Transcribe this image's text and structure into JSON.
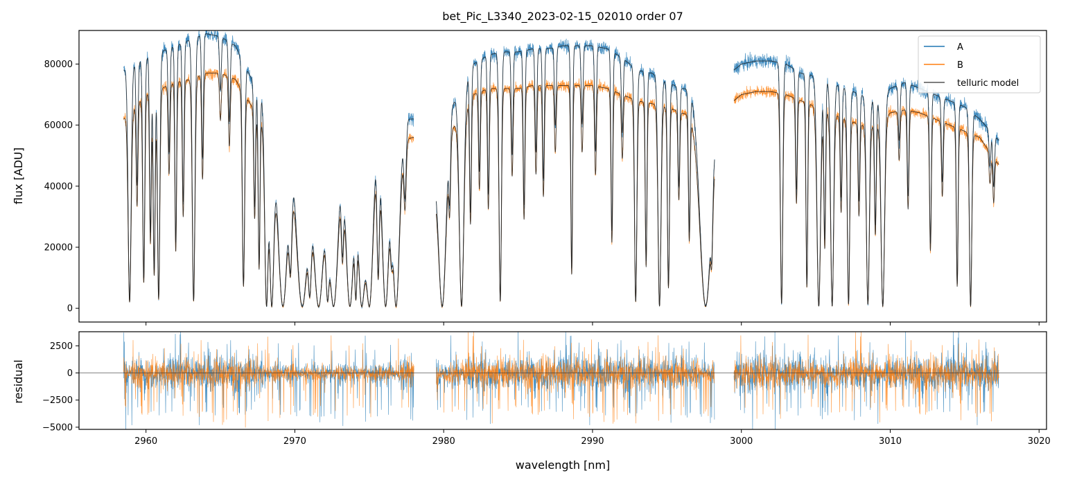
{
  "chart_data": [
    {
      "type": "line",
      "name": "flux-panel",
      "title": "bet_Pic_L3340_2023-02-15_02010  order 07",
      "xlabel": "",
      "ylabel": "flux [ADU]",
      "xlim": [
        2955.5,
        3020.5
      ],
      "ylim": [
        -4500,
        91000
      ],
      "yticks": [
        0,
        20000,
        40000,
        60000,
        80000
      ],
      "ytick_labels": [
        "0",
        "20000",
        "40000",
        "60000",
        "80000"
      ],
      "xticks": [
        2960,
        2970,
        2980,
        2990,
        3000,
        3010,
        3020
      ],
      "xtick_labels": [
        "",
        "",
        "",
        "",
        "",
        "",
        ""
      ],
      "legend": {
        "position": "top-right",
        "entries": [
          {
            "label": "A",
            "color": "#1f77b4"
          },
          {
            "label": "B",
            "color": "#ff7f0e"
          },
          {
            "label": "telluric model",
            "color": "#555555"
          }
        ]
      },
      "segments": [
        {
          "x_start": 2958.5,
          "x_end": 2978.0
        },
        {
          "x_start": 2979.5,
          "x_end": 2998.2
        },
        {
          "x_start": 2999.5,
          "x_end": 3017.3
        }
      ],
      "series": [
        {
          "name": "A",
          "color": "#1f77b4",
          "continuum": [
            [
              2958.5,
              78000
            ],
            [
              2960,
              82000
            ],
            [
              2961,
              84000
            ],
            [
              2962,
              86000
            ],
            [
              2963,
              88000
            ],
            [
              2964,
              90000
            ],
            [
              2965,
              89000
            ],
            [
              2966,
              86000
            ],
            [
              2967,
              76000
            ],
            [
              2968,
              68000
            ],
            [
              2969,
              62000
            ],
            [
              2970,
              62000
            ],
            [
              2971,
              54000
            ],
            [
              2972,
              48000
            ],
            [
              2973,
              64000
            ],
            [
              2974,
              66000
            ],
            [
              2975,
              62000
            ],
            [
              2976,
              62000
            ],
            [
              2977,
              62000
            ],
            [
              2978,
              62000
            ],
            [
              2979.5,
              50000
            ],
            [
              2980,
              64000
            ],
            [
              2981,
              70000
            ],
            [
              2982,
              80000
            ],
            [
              2983,
              83000
            ],
            [
              2984,
              84000
            ],
            [
              2985,
              84000
            ],
            [
              2986,
              85000
            ],
            [
              2987,
              85000
            ],
            [
              2988,
              86000
            ],
            [
              2989,
              86000
            ],
            [
              2990,
              86000
            ],
            [
              2991,
              85000
            ],
            [
              2992,
              82000
            ],
            [
              2993,
              78000
            ],
            [
              2994,
              77000
            ],
            [
              2995,
              74000
            ],
            [
              2996,
              72000
            ],
            [
              2997,
              72000
            ],
            [
              2998.2,
              70000
            ],
            [
              2999.5,
              78000
            ],
            [
              3000,
              80000
            ],
            [
              3001,
              81000
            ],
            [
              3002,
              81000
            ],
            [
              3003,
              80000
            ],
            [
              3004,
              77000
            ],
            [
              3005,
              76000
            ],
            [
              3006,
              74000
            ],
            [
              3007,
              72000
            ],
            [
              3008,
              70000
            ],
            [
              3009,
              68000
            ],
            [
              3010,
              72000
            ],
            [
              3011,
              74000
            ],
            [
              3012,
              72000
            ],
            [
              3013,
              70000
            ],
            [
              3014,
              68000
            ],
            [
              3015,
              66000
            ],
            [
              3016,
              62000
            ],
            [
              3017.3,
              55000
            ]
          ],
          "noise": 2200
        },
        {
          "name": "B",
          "color": "#ff7f0e",
          "continuum": [
            [
              2958.5,
              62000
            ],
            [
              2960,
              70000
            ],
            [
              2961,
              72000
            ],
            [
              2962,
              74000
            ],
            [
              2963,
              75000
            ],
            [
              2964,
              77000
            ],
            [
              2965,
              77000
            ],
            [
              2966,
              75000
            ],
            [
              2967,
              67000
            ],
            [
              2968,
              60000
            ],
            [
              2969,
              56000
            ],
            [
              2970,
              54000
            ],
            [
              2971,
              48000
            ],
            [
              2972,
              44000
            ],
            [
              2973,
              56000
            ],
            [
              2974,
              58000
            ],
            [
              2975,
              55000
            ],
            [
              2976,
              55000
            ],
            [
              2977,
              55000
            ],
            [
              2978,
              56000
            ],
            [
              2979.5,
              44000
            ],
            [
              2980,
              56000
            ],
            [
              2981,
              62000
            ],
            [
              2982,
              70000
            ],
            [
              2983,
              72000
            ],
            [
              2984,
              72000
            ],
            [
              2985,
              72000
            ],
            [
              2986,
              73000
            ],
            [
              2987,
              73000
            ],
            [
              2988,
              73000
            ],
            [
              2989,
              73000
            ],
            [
              2990,
              73000
            ],
            [
              2991,
              72000
            ],
            [
              2992,
              70000
            ],
            [
              2993,
              68000
            ],
            [
              2994,
              67000
            ],
            [
              2995,
              66000
            ],
            [
              2996,
              64000
            ],
            [
              2997,
              63000
            ],
            [
              2998.2,
              61000
            ],
            [
              2999.5,
              68000
            ],
            [
              3000,
              70000
            ],
            [
              3001,
              71000
            ],
            [
              3002,
              71000
            ],
            [
              3003,
              70000
            ],
            [
              3004,
              68000
            ],
            [
              3005,
              66000
            ],
            [
              3006,
              64000
            ],
            [
              3007,
              62000
            ],
            [
              3008,
              60000
            ],
            [
              3009,
              60000
            ],
            [
              3010,
              64000
            ],
            [
              3011,
              65000
            ],
            [
              3012,
              64000
            ],
            [
              3013,
              62000
            ],
            [
              3014,
              60000
            ],
            [
              3015,
              58000
            ],
            [
              3016,
              56000
            ],
            [
              3017.3,
              47000
            ]
          ],
          "noise": 1800
        },
        {
          "name": "telluric model",
          "color": "#333333",
          "noise": 0
        }
      ],
      "absorption_lines": [
        [
          2958.9,
          0.97,
          0.1
        ],
        [
          2959.4,
          0.5,
          0.06
        ],
        [
          2959.85,
          0.88,
          0.07
        ],
        [
          2960.3,
          0.7,
          0.06
        ],
        [
          2960.55,
          0.85,
          0.07
        ],
        [
          2960.85,
          0.96,
          0.08
        ],
        [
          2961.55,
          0.4,
          0.06
        ],
        [
          2962.0,
          0.75,
          0.06
        ],
        [
          2962.5,
          0.6,
          0.06
        ],
        [
          2963.2,
          0.97,
          0.09
        ],
        [
          2963.8,
          0.45,
          0.06
        ],
        [
          2965.0,
          0.2,
          0.06
        ],
        [
          2965.6,
          0.3,
          0.06
        ],
        [
          2966.55,
          0.9,
          0.08
        ],
        [
          2967.3,
          0.55,
          0.06
        ],
        [
          2967.6,
          0.8,
          0.06
        ],
        [
          2968.1,
          0.99,
          0.12
        ],
        [
          2968.45,
          0.99,
          0.15
        ],
        [
          2969.2,
          0.99,
          0.25
        ],
        [
          2969.7,
          0.7,
          0.1
        ],
        [
          2970.5,
          0.99,
          0.3
        ],
        [
          2971.0,
          0.85,
          0.1
        ],
        [
          2971.6,
          0.99,
          0.25
        ],
        [
          2972.2,
          0.9,
          0.1
        ],
        [
          2972.6,
          0.99,
          0.25
        ],
        [
          2973.2,
          0.6,
          0.08
        ],
        [
          2973.7,
          0.99,
          0.22
        ],
        [
          2974.1,
          0.9,
          0.08
        ],
        [
          2974.5,
          0.99,
          0.2
        ],
        [
          2975.0,
          0.99,
          0.2
        ],
        [
          2975.6,
          0.8,
          0.08
        ],
        [
          2976.1,
          0.99,
          0.18
        ],
        [
          2976.5,
          0.5,
          0.08
        ],
        [
          2976.8,
          0.99,
          0.18
        ],
        [
          2977.4,
          0.4,
          0.08
        ],
        [
          2979.9,
          0.99,
          0.2
        ],
        [
          2980.4,
          0.4,
          0.06
        ],
        [
          2981.2,
          0.99,
          0.15
        ],
        [
          2981.8,
          0.6,
          0.06
        ],
        [
          2982.4,
          0.45,
          0.06
        ],
        [
          2983.0,
          0.55,
          0.06
        ],
        [
          2983.8,
          0.97,
          0.08
        ],
        [
          2984.6,
          0.4,
          0.06
        ],
        [
          2985.4,
          0.6,
          0.06
        ],
        [
          2986.2,
          0.4,
          0.06
        ],
        [
          2986.7,
          0.5,
          0.06
        ],
        [
          2987.5,
          0.3,
          0.06
        ],
        [
          2988.6,
          0.85,
          0.06
        ],
        [
          2989.3,
          0.3,
          0.06
        ],
        [
          2990.2,
          0.4,
          0.06
        ],
        [
          2991.3,
          0.7,
          0.06
        ],
        [
          2992.0,
          0.3,
          0.06
        ],
        [
          2992.9,
          0.97,
          0.08
        ],
        [
          2993.6,
          0.8,
          0.06
        ],
        [
          2994.5,
          0.99,
          0.1
        ],
        [
          2995.1,
          0.9,
          0.07
        ],
        [
          2995.8,
          0.45,
          0.06
        ],
        [
          2996.5,
          0.65,
          0.06
        ],
        [
          2997.6,
          0.99,
          0.3
        ],
        [
          2998.0,
          0.5,
          0.06
        ],
        [
          3002.7,
          0.98,
          0.08
        ],
        [
          3003.7,
          0.5,
          0.06
        ],
        [
          3004.4,
          0.9,
          0.06
        ],
        [
          3005.2,
          0.99,
          0.12
        ],
        [
          3005.6,
          0.7,
          0.06
        ],
        [
          3006.1,
          0.99,
          0.1
        ],
        [
          3006.7,
          0.5,
          0.06
        ],
        [
          3007.2,
          0.98,
          0.08
        ],
        [
          3007.9,
          0.5,
          0.06
        ],
        [
          3008.5,
          0.98,
          0.1
        ],
        [
          3009.0,
          0.6,
          0.06
        ],
        [
          3009.5,
          0.99,
          0.12
        ],
        [
          3010.6,
          0.25,
          0.06
        ],
        [
          3011.2,
          0.5,
          0.06
        ],
        [
          3012.7,
          0.7,
          0.06
        ],
        [
          3013.5,
          0.4,
          0.06
        ],
        [
          3014.5,
          0.88,
          0.06
        ],
        [
          3015.4,
          0.99,
          0.08
        ],
        [
          3016.7,
          0.2,
          0.06
        ],
        [
          3016.95,
          0.3,
          0.06
        ]
      ]
    },
    {
      "type": "line",
      "name": "residual-panel",
      "xlabel": "wavelength [nm]",
      "ylabel": "residual",
      "xlim": [
        2955.5,
        3020.5
      ],
      "ylim": [
        -5200,
        3800
      ],
      "yticks": [
        -5000,
        -2500,
        0,
        2500
      ],
      "ytick_labels": [
        "−5000",
        "−2500",
        "0",
        "2500"
      ],
      "xticks": [
        2960,
        2970,
        2980,
        2990,
        3000,
        3010,
        3020
      ],
      "xtick_labels": [
        "2960",
        "2970",
        "2980",
        "2990",
        "3000",
        "3010",
        "3020"
      ],
      "zero_line": 0,
      "series": [
        {
          "name": "A",
          "color": "#1f77b4",
          "noise": 1400
        },
        {
          "name": "B",
          "color": "#ff7f0e",
          "noise": 1100
        }
      ]
    }
  ]
}
